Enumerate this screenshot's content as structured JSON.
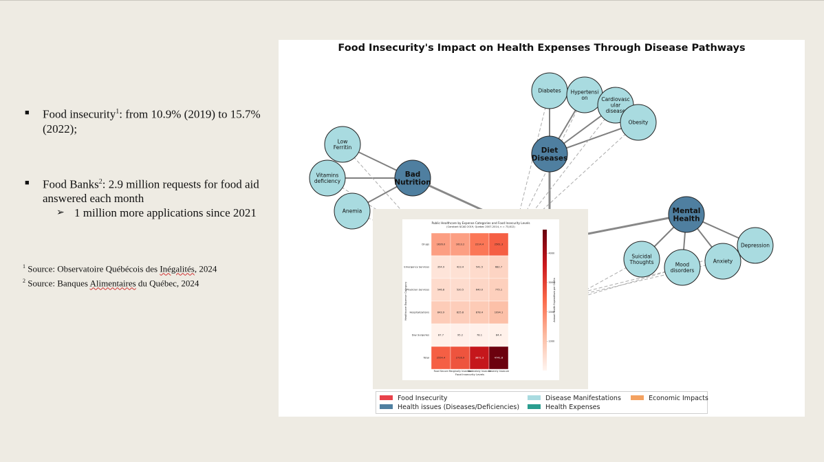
{
  "slide": {
    "bullets": [
      {
        "text_a": "Food insecurity",
        "sup": "1",
        "text_b": ": from 10.9% (2019) to 15.7% (2022);"
      },
      {
        "text_a": "Food Banks",
        "sup": "2",
        "text_b": ": 2.9 million requests for food aid answered each month"
      }
    ],
    "sub_bullet": "1 million more applications since 2021",
    "sources": [
      {
        "sup": "1",
        "text_a": " Source: Observatoire Québécois des ",
        "flag": "Inégalités",
        "text_b": ", 2024"
      },
      {
        "sup": "2",
        "text_a": " Source: Banques ",
        "flag": "Alimentaires",
        "text_b": " du Québec, 2024"
      }
    ]
  },
  "diagram": {
    "title": "Food Insecurity's Impact on Health Expenses Through Disease Pathways",
    "colors": {
      "food_insecurity": "#e8424a",
      "health_issue": "#4f7fa0",
      "disease": "#a9dbe0",
      "health_expense": "#2a9d8f",
      "economic": "#f4a261"
    },
    "nodes": [
      {
        "id": "bad_nutrition",
        "label": "Bad Nutrition",
        "kind": "health_issue"
      },
      {
        "id": "diet_diseases",
        "label": "Diet Diseases",
        "kind": "health_issue"
      },
      {
        "id": "mental_health",
        "label": "Mental Health",
        "kind": "health_issue"
      },
      {
        "id": "low_ferritin",
        "label": "Low Ferritin",
        "kind": "disease"
      },
      {
        "id": "vitamins",
        "label": "Vitamins deficiency",
        "kind": "disease"
      },
      {
        "id": "anemia",
        "label": "Anemia",
        "kind": "disease"
      },
      {
        "id": "diabetes",
        "label": "Diabetes",
        "kind": "disease"
      },
      {
        "id": "hypertension",
        "label": "Hypertension",
        "kind": "disease"
      },
      {
        "id": "cardio",
        "label": "Cardiovascular disease",
        "kind": "disease"
      },
      {
        "id": "obesity",
        "label": "Obesity",
        "kind": "disease"
      },
      {
        "id": "depression",
        "label": "Depression",
        "kind": "disease"
      },
      {
        "id": "suicidal",
        "label": "Suicidal Thoughts",
        "kind": "disease"
      },
      {
        "id": "mood",
        "label": "Mood disorders",
        "kind": "disease"
      },
      {
        "id": "anxiety",
        "label": "Anxiety",
        "kind": "disease"
      }
    ],
    "legend": [
      {
        "label": "Food Insecurity",
        "color": "#e8424a"
      },
      {
        "label": "Health issues (Diseases/Deficiencies)",
        "color": "#4f7fa0"
      },
      {
        "label": "Disease Manifestations",
        "color": "#a9dbe0"
      },
      {
        "label": "Health Expenses",
        "color": "#2a9d8f"
      },
      {
        "label": "Economic Impacts",
        "color": "#f4a261"
      }
    ]
  },
  "chart_data": {
    "type": "heatmap",
    "title": "Public Healthcare by Expense Categories and Food Insecurity Levels",
    "subtitle": "(Constant $CAD 2019, Quebec 2007-2014, n = 73,812)",
    "xlabel": "Food Insecurity Levels",
    "ylabel": "Healthcare Expense Category",
    "colorbar_label": "Annual Health Expenditure per Capita",
    "colorbar_ticks": [
      "1000",
      "2000",
      "3000",
      "4000"
    ],
    "columns": [
      "Food Secure",
      "Marginally Insecure",
      "Moderately Insecure",
      "Severely Insecure"
    ],
    "rows": [
      "Drugs",
      "Emergency Services",
      "Physician Services",
      "Hospitalizations",
      "Day Surgeries",
      "Total"
    ],
    "values": [
      [
        1626.0,
        1613.2,
        2214.4,
        2561.3
      ],
      [
        354.9,
        423.4,
        541.5,
        682.7
      ],
      [
        546.8,
        520.5,
        640.0,
        775.1
      ],
      [
        843.9,
        825.8,
        878.4,
        1094.1
      ],
      [
        87.7,
        95.2,
        78.1,
        84.4
      ],
      [
        2554.4,
        2716.9,
        3671.3,
        4741.8
      ]
    ],
    "value_labels": [
      [
        "1626.0",
        "1613.2",
        "2214.4",
        "2561.3"
      ],
      [
        "354.9",
        "423.4",
        "541.5",
        "682.7"
      ],
      [
        "546.8",
        "520.5",
        "640.0",
        "775.1"
      ],
      [
        "843.9",
        "825.8",
        "878.4",
        "1094.1"
      ],
      [
        "87.7",
        "95.2",
        "78.1",
        "84.4"
      ],
      [
        "2554.4",
        "2716.9",
        "3671.3",
        "4741.8"
      ]
    ],
    "vmin": 0,
    "vmax": 4800
  }
}
